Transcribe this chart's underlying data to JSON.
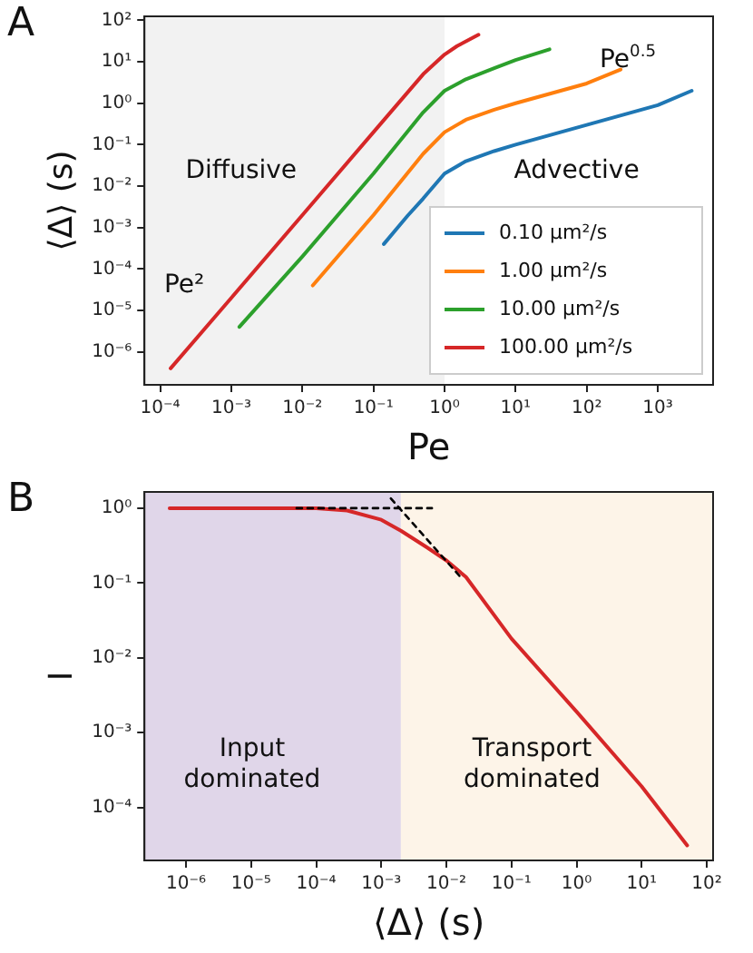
{
  "chart_data": [
    {
      "type": "line",
      "xlabel": "Pe",
      "ylabel": "⟨Δ⟩ (s)",
      "log": "xy",
      "grid": false,
      "legend": "bottom right",
      "marker": "none",
      "line_style": "solid",
      "xlim": [
        6e-05,
        6000
      ],
      "ylim": [
        1.6e-07,
        125
      ],
      "xticks": [
        {
          "value": 0.0001,
          "label": "10⁻⁴"
        },
        {
          "value": 0.001,
          "label": "10⁻³"
        },
        {
          "value": 0.01,
          "label": "10⁻²"
        },
        {
          "value": 0.1,
          "label": "10⁻¹"
        },
        {
          "value": 1,
          "label": "10⁰"
        },
        {
          "value": 10,
          "label": "10¹"
        },
        {
          "value": 100,
          "label": "10²"
        },
        {
          "value": 1000,
          "label": "10³"
        }
      ],
      "yticks": [
        {
          "value": 1e-06,
          "label": "10⁻⁶"
        },
        {
          "value": 1e-05,
          "label": "10⁻⁵"
        },
        {
          "value": 0.0001,
          "label": "10⁻⁴"
        },
        {
          "value": 0.001,
          "label": "10⁻³"
        },
        {
          "value": 0.01,
          "label": "10⁻²"
        },
        {
          "value": 0.1,
          "label": "10⁻¹"
        },
        {
          "value": 1,
          "label": "10⁰"
        },
        {
          "value": 10,
          "label": "10¹"
        },
        {
          "value": 100,
          "label": "10²"
        }
      ],
      "bands": [
        {
          "axis": "x",
          "from": 6e-05,
          "to": 1,
          "color": "#f2f2f2"
        }
      ],
      "annotations": [
        "A",
        "Diffusive",
        "Advective",
        "Pe²",
        "Pe$^{0.5}$"
      ],
      "series": [
        {
          "name": "0.10 μm²/s",
          "color": "#1f77b4",
          "x": [
            0.14,
            0.3,
            0.5,
            1,
            2,
            5,
            10,
            100,
            1000,
            3000
          ],
          "values": [
            0.0004,
            0.0019,
            0.005,
            0.02,
            0.04,
            0.07,
            0.1,
            0.3,
            0.9,
            2
          ]
        },
        {
          "name": "1.00 μm²/s",
          "color": "#ff7f0e",
          "x": [
            0.014,
            0.1,
            0.5,
            1,
            2,
            5,
            10,
            100,
            300
          ],
          "values": [
            4e-05,
            0.002,
            0.06,
            0.2,
            0.4,
            0.7,
            1,
            3,
            6.5
          ]
        },
        {
          "name": "10.00 μm²/s",
          "color": "#2ca02c",
          "x": [
            0.0013,
            0.01,
            0.1,
            0.5,
            1,
            2,
            5,
            10,
            30
          ],
          "values": [
            4e-06,
            0.0002,
            0.02,
            0.6,
            2,
            3.8,
            7,
            11,
            20
          ]
        },
        {
          "name": "100.00 μm²/s",
          "color": "#d62728",
          "x": [
            0.00014,
            0.001,
            0.01,
            0.1,
            0.5,
            1,
            1.5,
            3
          ],
          "values": [
            4e-07,
            2e-05,
            0.002,
            0.2,
            5,
            15,
            24,
            45
          ]
        }
      ]
    },
    {
      "type": "line",
      "xlabel": "⟨Δ⟩ (s)",
      "ylabel": "I",
      "log": "xy",
      "grid": false,
      "marker": "none",
      "line_style": "solid",
      "xlim": [
        2.3e-07,
        125
      ],
      "ylim": [
        1.95e-05,
        1.65
      ],
      "xticks": [
        {
          "value": 1e-06,
          "label": "10⁻⁶"
        },
        {
          "value": 1e-05,
          "label": "10⁻⁵"
        },
        {
          "value": 0.0001,
          "label": "10⁻⁴"
        },
        {
          "value": 0.001,
          "label": "10⁻³"
        },
        {
          "value": 0.01,
          "label": "10⁻²"
        },
        {
          "value": 0.1,
          "label": "10⁻¹"
        },
        {
          "value": 1,
          "label": "10⁰"
        },
        {
          "value": 10,
          "label": "10¹"
        },
        {
          "value": 100,
          "label": "10²"
        }
      ],
      "yticks": [
        {
          "value": 0.0001,
          "label": "10⁻⁴"
        },
        {
          "value": 0.001,
          "label": "10⁻³"
        },
        {
          "value": 0.01,
          "label": "10⁻²"
        },
        {
          "value": 0.1,
          "label": "10⁻¹"
        },
        {
          "value": 1,
          "label": "10⁰"
        }
      ],
      "bands": [
        {
          "axis": "x",
          "from": 2.3e-07,
          "to": 0.002,
          "label": "Input dominated",
          "color": "#e0d6e9"
        },
        {
          "axis": "x",
          "from": 0.002,
          "to": 125,
          "label": "Transport dominated",
          "color": "#fdf4e8"
        }
      ],
      "annotations": [
        "B"
      ],
      "series": [
        {
          "color": "#d62728",
          "x": [
            5.6e-07,
            1e-05,
            0.0001,
            0.0003,
            0.001,
            0.002,
            0.005,
            0.01,
            0.02,
            0.1,
            1,
            10,
            50
          ],
          "values": [
            1,
            1,
            1,
            0.93,
            0.7,
            0.5,
            0.3,
            0.2,
            0.12,
            0.018,
            0.0019,
            0.00019,
            3.1e-05
          ]
        },
        {
          "type": "line",
          "color": "#000000",
          "line_style": "dashed",
          "x": [
            5e-05,
            0.006
          ],
          "values": [
            1,
            1
          ]
        },
        {
          "type": "line",
          "color": "#000000",
          "line_style": "dashed",
          "x": [
            0.0014,
            0.018
          ],
          "values": [
            1.35,
            0.11
          ]
        }
      ]
    }
  ]
}
